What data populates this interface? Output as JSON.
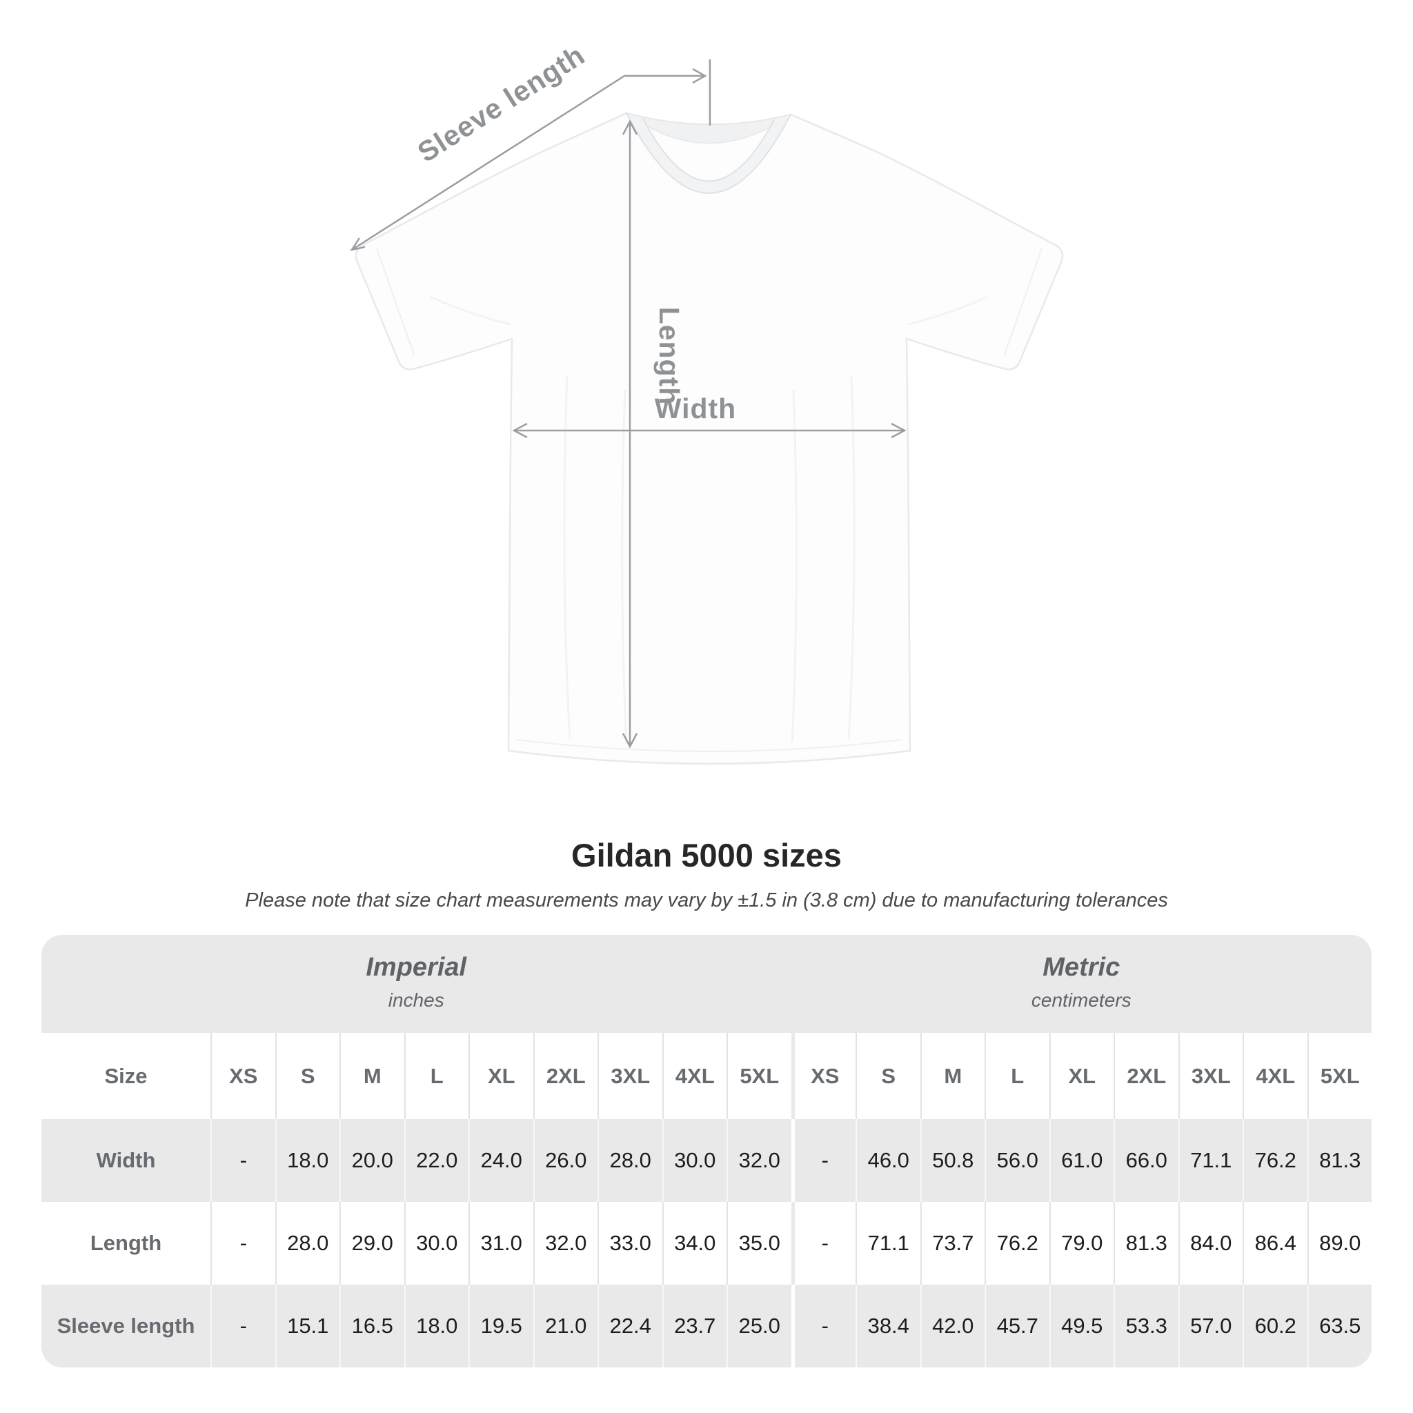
{
  "diagram": {
    "labels": {
      "sleeve_length": "Sleeve length",
      "length": "Length",
      "width": "Width"
    },
    "colors": {
      "annotation_line": "#9b9ea1",
      "annotation_text": "#8f9295",
      "shirt_fill": "#fdfdfe",
      "shirt_outline": "#e8e9ea"
    }
  },
  "chart_data": {
    "type": "table",
    "title": "Gildan 5000 sizes",
    "note": "Please note that size chart measurements may vary by ±1.5 in (3.8 cm) due to manufacturing tolerances",
    "corner_header": "Size",
    "sections": [
      {
        "label": "Imperial",
        "unit": "inches"
      },
      {
        "label": "Metric",
        "unit": "centimeters"
      }
    ],
    "size_columns": [
      "XS",
      "S",
      "M",
      "L",
      "XL",
      "2XL",
      "3XL",
      "4XL",
      "5XL"
    ],
    "rows": [
      {
        "label": "Width",
        "imperial": [
          "-",
          "18.0",
          "20.0",
          "22.0",
          "24.0",
          "26.0",
          "28.0",
          "30.0",
          "32.0"
        ],
        "metric": [
          "-",
          "46.0",
          "50.8",
          "56.0",
          "61.0",
          "66.0",
          "71.1",
          "76.2",
          "81.3"
        ]
      },
      {
        "label": "Length",
        "imperial": [
          "-",
          "28.0",
          "29.0",
          "30.0",
          "31.0",
          "32.0",
          "33.0",
          "34.0",
          "35.0"
        ],
        "metric": [
          "-",
          "71.1",
          "73.7",
          "76.2",
          "79.0",
          "81.3",
          "84.0",
          "86.4",
          "89.0"
        ]
      },
      {
        "label": "Sleeve length",
        "imperial": [
          "-",
          "15.1",
          "16.5",
          "18.0",
          "19.5",
          "21.0",
          "22.4",
          "23.7",
          "25.0"
        ],
        "metric": [
          "-",
          "38.4",
          "42.0",
          "45.7",
          "49.5",
          "53.3",
          "57.0",
          "60.2",
          "63.5"
        ]
      }
    ],
    "colors": {
      "stripe": "#e9e9ea",
      "header_text": "#676b6f",
      "value_text": "#1c1d1f"
    }
  }
}
